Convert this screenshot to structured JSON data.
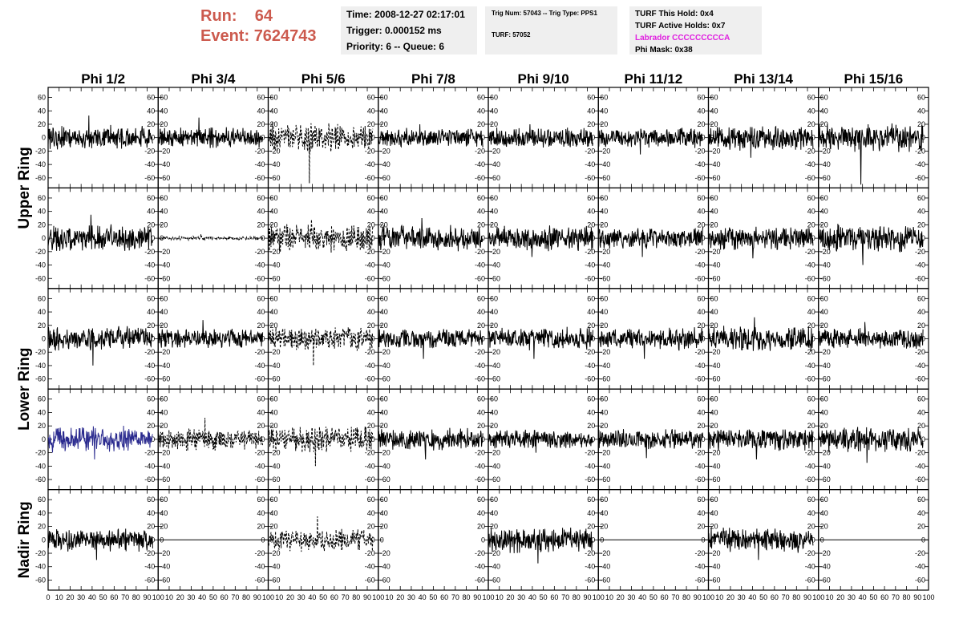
{
  "header": {
    "run_label": "Run:",
    "run_value": "64",
    "event_label": "Event:",
    "event_value": "7624743",
    "accent_color": "#cc5a4e",
    "time": "Time: 2008-12-27 02:17:01",
    "trigger": "Trigger: 0.000152 ms",
    "priority": "Priority: 6 -- Queue: 6",
    "trig_num": "Trig Num: 57043 -- Trig Type: PPS1",
    "turf": "TURF: 57052",
    "turf_this_hold": "TURF This Hold: 0x4",
    "turf_active_holds": "TURF Active Holds: 0x7",
    "labrador": "Labrador CCCCCCCCCA",
    "labrador_color": "#e020e0",
    "phi_mask": "Phi Mask: 0x38"
  },
  "chart_data": {
    "type": "line",
    "columns": [
      "Phi 1/2",
      "Phi 3/4",
      "Phi 5/6",
      "Phi 7/8",
      "Phi 9/10",
      "Phi 11/12",
      "Phi 13/14",
      "Phi 15/16"
    ],
    "row_labels": [
      "Upper Ring",
      "Lower Ring",
      "Nadir Ring"
    ],
    "xlim": [
      0,
      100
    ],
    "ylim": [
      -75,
      75
    ],
    "x_ticks": [
      0,
      10,
      20,
      30,
      40,
      50,
      60,
      70,
      80,
      90,
      100
    ],
    "y_ticks": [
      -60,
      -40,
      -20,
      0,
      20,
      40,
      60
    ],
    "samples_per_trace": 260,
    "trace_x_range": [
      0,
      95
    ],
    "trace_color_default": "#000000",
    "trace_color_highlight": "#2b2b8f",
    "panels": [
      [
        {
          "amp": 13,
          "spike": 33,
          "style": "solid"
        },
        {
          "amp": 11,
          "spike": 30,
          "style": "solid"
        },
        {
          "amp": 16,
          "spike": -68,
          "style": "dashed"
        },
        {
          "amp": 10,
          "spike": 20,
          "style": "solid"
        },
        {
          "amp": 11,
          "spike": 20,
          "style": "solid"
        },
        {
          "amp": 11,
          "spike": -25,
          "style": "solid"
        },
        {
          "amp": 13,
          "spike": -30,
          "style": "solid"
        },
        {
          "amp": 15,
          "spike": -70,
          "style": "solid"
        }
      ],
      [
        {
          "amp": 14,
          "spike": 35,
          "style": "solid"
        },
        {
          "amp": 2,
          "spike": 6,
          "style": "dashed"
        },
        {
          "amp": 15,
          "spike": 28,
          "style": "dashed"
        },
        {
          "amp": 14,
          "spike": 30,
          "style": "solid"
        },
        {
          "amp": 13,
          "spike": -28,
          "style": "solid"
        },
        {
          "amp": 12,
          "spike": -28,
          "style": "solid"
        },
        {
          "amp": 13,
          "spike": -30,
          "style": "solid"
        },
        {
          "amp": 15,
          "spike": -40,
          "style": "solid"
        }
      ],
      [
        {
          "amp": 13,
          "spike": -40,
          "style": "solid"
        },
        {
          "amp": 11,
          "spike": 28,
          "style": "solid"
        },
        {
          "amp": 13,
          "spike": -40,
          "style": "dashed"
        },
        {
          "amp": 11,
          "spike": -30,
          "style": "solid"
        },
        {
          "amp": 12,
          "spike": -30,
          "style": "solid"
        },
        {
          "amp": 12,
          "spike": -30,
          "style": "solid"
        },
        {
          "amp": 14,
          "spike": 32,
          "style": "solid"
        },
        {
          "amp": 11,
          "spike": 25,
          "style": "solid"
        }
      ],
      [
        {
          "amp": 14,
          "spike": -30,
          "style": "solid",
          "color": "highlight"
        },
        {
          "amp": 12,
          "spike": 32,
          "style": "dashed"
        },
        {
          "amp": 15,
          "spike": -40,
          "style": "dashed"
        },
        {
          "amp": 12,
          "spike": -30,
          "style": "solid"
        },
        {
          "amp": 10,
          "spike": -20,
          "style": "solid"
        },
        {
          "amp": 11,
          "spike": -28,
          "style": "solid"
        },
        {
          "amp": 12,
          "spike": -30,
          "style": "solid"
        },
        {
          "amp": 14,
          "spike": -35,
          "style": "solid"
        }
      ],
      [
        {
          "amp": 12,
          "spike": -30,
          "style": "solid"
        },
        {
          "amp": 0,
          "spike": 0,
          "style": "flat"
        },
        {
          "amp": 12,
          "spike": 35,
          "style": "dashed"
        },
        {
          "amp": 0,
          "spike": 0,
          "style": "none"
        },
        {
          "amp": 14,
          "spike": -35,
          "style": "solid"
        },
        {
          "amp": 0,
          "spike": 0,
          "style": "flat"
        },
        {
          "amp": 13,
          "spike": -30,
          "style": "solid"
        },
        {
          "amp": 0,
          "spike": 0,
          "style": "flat"
        }
      ]
    ]
  }
}
